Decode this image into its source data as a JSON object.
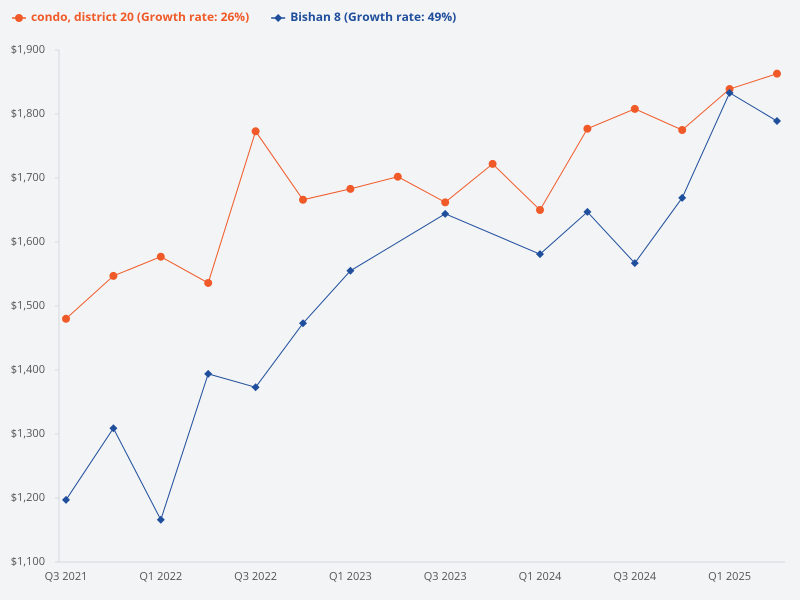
{
  "chart_data": {
    "type": "line",
    "categories": [
      "Q3 2021",
      null,
      "Q1 2022",
      null,
      "Q3 2022",
      null,
      "Q1 2023",
      null,
      "Q3 2023",
      null,
      "Q1 2024",
      null,
      "Q3 2024",
      null,
      "Q1 2025",
      null
    ],
    "series": [
      {
        "name": "condo, district 20 (Growth rate: 26%)",
        "color": "#f05a28",
        "marker": "circle",
        "values": [
          1480,
          1547,
          1577,
          1536,
          1773,
          1666,
          1683,
          1702,
          1662,
          1722,
          1650,
          1777,
          1808,
          1775,
          1839,
          1863
        ]
      },
      {
        "name": "Bishan 8 (Growth rate: 49%)",
        "color": "#1f4e9c",
        "marker": "diamond",
        "values": [
          1197,
          1309,
          1166,
          1394,
          1373,
          1473,
          1555,
          null,
          1644,
          null,
          1581,
          1647,
          1567,
          1669,
          1833,
          1789
        ]
      }
    ],
    "span_gaps": true,
    "ylim": [
      1100,
      1900
    ],
    "yticks": [
      {
        "value": 1100,
        "label": "$1,100"
      },
      {
        "value": 1200,
        "label": "$1,200"
      },
      {
        "value": 1300,
        "label": "$1,300"
      },
      {
        "value": 1400,
        "label": "$1,400"
      },
      {
        "value": 1500,
        "label": "$1,500"
      },
      {
        "value": 1600,
        "label": "$1,600"
      },
      {
        "value": 1700,
        "label": "$1,700"
      },
      {
        "value": 1800,
        "label": "$1,800"
      },
      {
        "value": 1900,
        "label": "$1,900"
      }
    ],
    "grid": false,
    "legend": "top-left"
  }
}
